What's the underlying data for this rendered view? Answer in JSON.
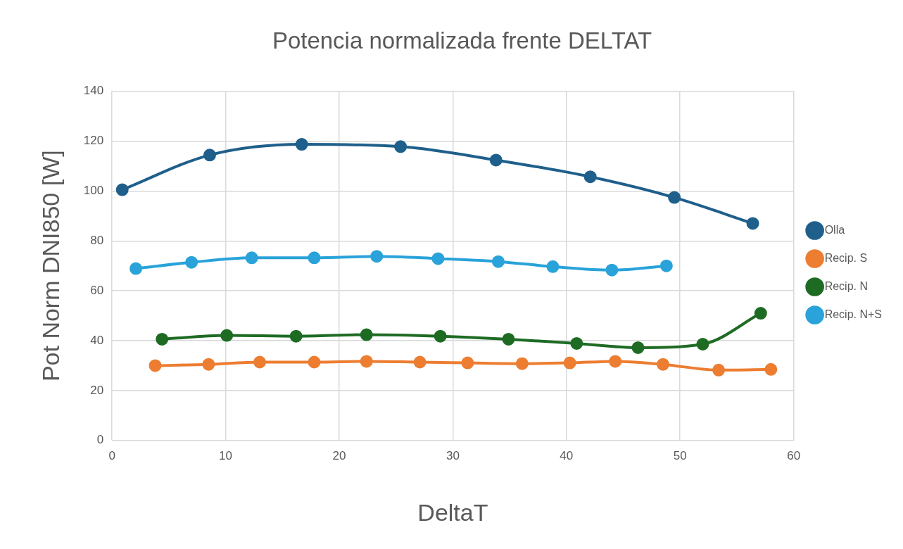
{
  "chart_data": {
    "type": "line",
    "title": "Potencia normalizada frente DELTAT",
    "xlabel": "DeltaT",
    "ylabel": "Pot Norm DNI850 [W]",
    "xlim": [
      0,
      60
    ],
    "xticks": [
      0,
      10,
      20,
      30,
      40,
      50,
      60
    ],
    "ylim": [
      0,
      140
    ],
    "yticks": [
      0,
      20,
      40,
      60,
      80,
      100,
      120,
      140
    ],
    "grid": true,
    "legend": "right",
    "marker": "circle",
    "line_style": "solid",
    "series": [
      {
        "name": "Olla",
        "color": "#1f5f8b",
        "x": [
          0.9,
          8.6,
          16.7,
          25.4,
          33.8,
          42.1,
          49.5,
          56.4
        ],
        "values": [
          100.5,
          114.4,
          118.7,
          117.8,
          112.4,
          105.7,
          97.4,
          87.0
        ]
      },
      {
        "name": "Recip. S",
        "color": "#ed7d31",
        "x": [
          3.8,
          8.5,
          13.0,
          17.8,
          22.4,
          27.1,
          31.3,
          36.1,
          40.3,
          44.3,
          48.5,
          53.4,
          58.0
        ],
        "values": [
          30.0,
          30.5,
          31.4,
          31.4,
          31.7,
          31.4,
          31.1,
          30.8,
          31.1,
          31.7,
          30.5,
          28.2,
          28.5
        ]
      },
      {
        "name": "Recip. N",
        "color": "#1e6b24",
        "x": [
          4.4,
          10.1,
          16.2,
          22.4,
          28.9,
          34.9,
          40.9,
          46.3,
          52.0,
          57.1
        ],
        "values": [
          40.6,
          42.1,
          41.8,
          42.4,
          41.8,
          40.6,
          38.9,
          37.2,
          38.6,
          51.0
        ]
      },
      {
        "name": "Recip. N+S",
        "color": "#29a3d9",
        "x": [
          2.1,
          7.0,
          12.3,
          17.8,
          23.3,
          28.7,
          34.0,
          38.8,
          44.0,
          48.8
        ],
        "values": [
          68.9,
          71.4,
          73.2,
          73.2,
          73.8,
          72.9,
          71.7,
          69.7,
          68.3,
          70.0
        ]
      }
    ]
  }
}
